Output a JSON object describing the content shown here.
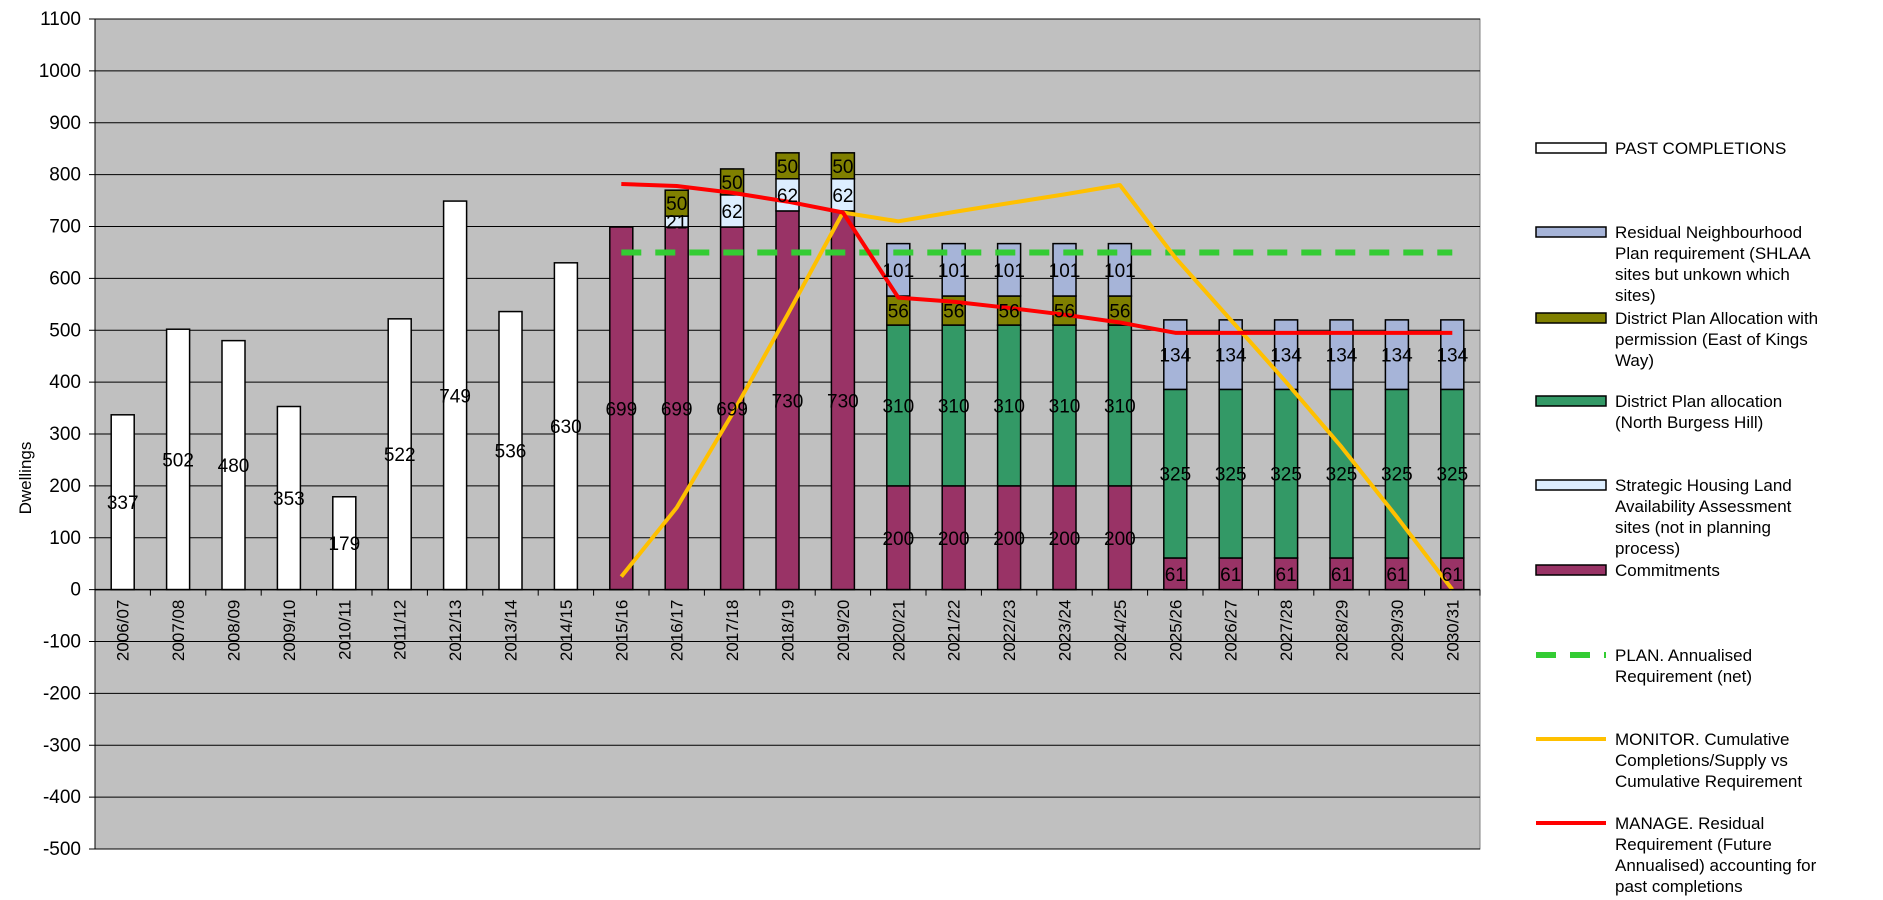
{
  "chart_data": {
    "type": "bar",
    "ylabel": "Dwellings",
    "xlabel": "",
    "title": "",
    "ylim": [
      -500,
      1100
    ],
    "yticks": [
      -500,
      -400,
      -300,
      -200,
      -100,
      0,
      100,
      200,
      300,
      400,
      500,
      600,
      700,
      800,
      900,
      1000,
      1100
    ],
    "grid": true,
    "plot_background": "#C0C0C0",
    "legend_position": "right",
    "categories": [
      "2006/07",
      "2007/08",
      "2008/09",
      "2009/10",
      "2010/11",
      "2011/12",
      "2012/13",
      "2013/14",
      "2014/15",
      "2015/16",
      "2016/17",
      "2017/18",
      "2018/19",
      "2019/20",
      "2020/21",
      "2021/22",
      "2022/23",
      "2023/24",
      "2024/25",
      "2025/26",
      "2026/27",
      "2027/28",
      "2028/29",
      "2029/30",
      "2030/31"
    ],
    "bar_series": [
      {
        "key": "commitments",
        "name": "Commitments",
        "color": "#993366",
        "values": [
          null,
          null,
          null,
          null,
          null,
          null,
          null,
          null,
          null,
          699,
          699,
          699,
          730,
          730,
          200,
          200,
          200,
          200,
          200,
          61,
          61,
          61,
          61,
          61,
          61
        ]
      },
      {
        "key": "past",
        "name": "PAST COMPLETIONS",
        "color": "#FFFFFF",
        "values": [
          337,
          502,
          480,
          353,
          179,
          522,
          749,
          536,
          630,
          null,
          null,
          null,
          null,
          null,
          null,
          null,
          null,
          null,
          null,
          null,
          null,
          null,
          null,
          null,
          null
        ]
      },
      {
        "key": "shlaa",
        "name": "Strategic Housing Land Availability Assessment sites (not in planning process)",
        "color": "#DDEEFF",
        "values": [
          null,
          null,
          null,
          null,
          null,
          null,
          null,
          null,
          null,
          null,
          21,
          62,
          62,
          62,
          null,
          null,
          null,
          null,
          null,
          null,
          null,
          null,
          null,
          null,
          null
        ]
      },
      {
        "key": "dp_north",
        "name": "District Plan allocation (North Burgess Hill)",
        "color": "#339966",
        "values": [
          null,
          null,
          null,
          null,
          null,
          null,
          null,
          null,
          null,
          null,
          null,
          null,
          null,
          null,
          310,
          310,
          310,
          310,
          310,
          325,
          325,
          325,
          325,
          325,
          325
        ]
      },
      {
        "key": "dp_kings",
        "name": "District Plan Allocation with permission (East of Kings Way)",
        "color": "#808000",
        "values": [
          null,
          null,
          null,
          null,
          null,
          null,
          null,
          null,
          null,
          null,
          50,
          50,
          50,
          50,
          56,
          56,
          56,
          56,
          56,
          null,
          null,
          null,
          null,
          null,
          null
        ]
      },
      {
        "key": "residual_np",
        "name": "Residual Neighbourhood Plan requirement (SHLAA sites but unkown which sites)",
        "color": "#A6B4D8",
        "values": [
          null,
          null,
          null,
          null,
          null,
          null,
          null,
          null,
          null,
          null,
          null,
          null,
          null,
          null,
          101,
          101,
          101,
          101,
          101,
          134,
          134,
          134,
          134,
          134,
          134
        ]
      }
    ],
    "line_series": [
      {
        "key": "plan",
        "name": "PLAN.  Annualised Requirement (net)",
        "color": "#33CC33",
        "dashed": true,
        "values": [
          null,
          null,
          null,
          null,
          null,
          null,
          null,
          null,
          null,
          650,
          650,
          650,
          650,
          650,
          650,
          650,
          650,
          650,
          650,
          650,
          650,
          650,
          650,
          650,
          650
        ]
      },
      {
        "key": "monitor",
        "name": "MONITOR. Cumulative Completions/Supply vs Cumulative Requirement",
        "color": "#FFC000",
        "dashed": false,
        "values": [
          null,
          null,
          null,
          null,
          null,
          null,
          null,
          null,
          null,
          25,
          158,
          338,
          530,
          727,
          710,
          728,
          745,
          762,
          780,
          640,
          520,
          400,
          275,
          140,
          0
        ]
      },
      {
        "key": "manage",
        "name": "MANAGE.  Residual Requirement (Future Annualised) accounting for past completions",
        "color": "#FF0000",
        "dashed": false,
        "values": [
          null,
          null,
          null,
          null,
          null,
          null,
          null,
          null,
          null,
          782,
          778,
          765,
          748,
          727,
          563,
          555,
          543,
          530,
          515,
          495,
          495,
          495,
          495,
          495,
          495
        ]
      }
    ],
    "legend_lines": [
      {
        "key": "past",
        "lines": [
          "PAST COMPLETIONS"
        ]
      },
      {
        "key": "residual_np",
        "lines": [
          "Residual Neighbourhood",
          "Plan requirement (SHLAA",
          "sites but unkown which",
          "sites)"
        ]
      },
      {
        "key": "dp_kings",
        "lines": [
          "District Plan Allocation with",
          "permission (East of Kings",
          "Way)"
        ]
      },
      {
        "key": "dp_north",
        "lines": [
          "District Plan allocation",
          "(North Burgess Hill)"
        ]
      },
      {
        "key": "shlaa",
        "lines": [
          "Strategic Housing Land",
          "Availability Assessment",
          "sites (not in planning",
          "process)"
        ]
      },
      {
        "key": "commitments",
        "lines": [
          "Commitments"
        ]
      },
      {
        "key": "plan",
        "lines": [
          "PLAN.  Annualised",
          "Requirement (net)"
        ]
      },
      {
        "key": "monitor",
        "lines": [
          "MONITOR. Cumulative",
          "Completions/Supply vs",
          "Cumulative Requirement"
        ]
      },
      {
        "key": "manage",
        "lines": [
          "MANAGE.  Residual",
          "Requirement (Future",
          "Annualised) accounting for",
          "past completions"
        ]
      }
    ]
  }
}
